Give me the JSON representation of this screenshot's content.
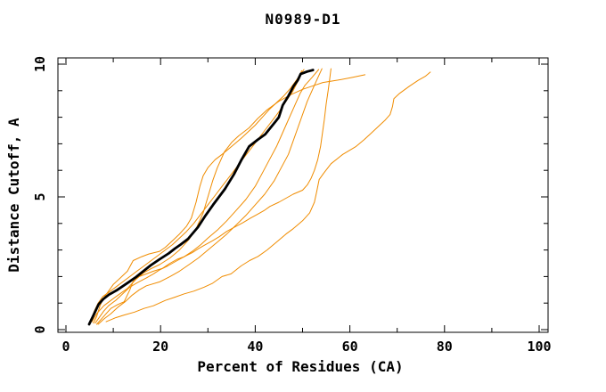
{
  "figure": {
    "title": "N0989-D1",
    "xlabel": "Percent of Residues (CA)",
    "ylabel": "Distance Cutoff, A"
  },
  "chart_data": {
    "type": "line",
    "title": "N0989-D1",
    "xlabel": "Percent of Residues (CA)",
    "ylabel": "Distance Cutoff, A",
    "xlim": [
      0,
      100
    ],
    "ylim": [
      0,
      10
    ],
    "x_ticks_major": [
      0,
      20,
      40,
      60,
      80,
      100
    ],
    "x_ticks_minor": [
      10,
      30,
      50,
      70,
      90
    ],
    "y_ticks_major": [
      0,
      5,
      10
    ],
    "y_ticks_minor": [
      1,
      2,
      3,
      4,
      6,
      7,
      8,
      9
    ],
    "grid": false,
    "legend": "none",
    "colors": {
      "model": "#f08c00",
      "reference": "#000000"
    },
    "series": [
      {
        "id": "orange-line-1",
        "color": "#f08c00",
        "width": 1,
        "points": [
          [
            5.8,
            0.25
          ],
          [
            6.5,
            0.5
          ],
          [
            7.2,
            0.9
          ],
          [
            8,
            1.2
          ],
          [
            9,
            1.45
          ],
          [
            10,
            1.7
          ],
          [
            11.5,
            1.95
          ],
          [
            13,
            2.2
          ],
          [
            14.2,
            2.6
          ],
          [
            16,
            2.75
          ],
          [
            17.5,
            2.85
          ],
          [
            19.8,
            2.95
          ],
          [
            21,
            3.1
          ],
          [
            22.5,
            3.35
          ],
          [
            24,
            3.6
          ],
          [
            25.5,
            3.9
          ],
          [
            26.5,
            4.2
          ],
          [
            27.5,
            4.8
          ],
          [
            28.3,
            5.4
          ],
          [
            29,
            5.8
          ],
          [
            30,
            6.1
          ],
          [
            31.5,
            6.4
          ],
          [
            33,
            6.6
          ],
          [
            35,
            6.9
          ],
          [
            37,
            7.2
          ],
          [
            38.5,
            7.45
          ],
          [
            40,
            7.7
          ],
          [
            41.5,
            8.0
          ],
          [
            43,
            8.3
          ],
          [
            44.5,
            8.55
          ],
          [
            46,
            8.8
          ],
          [
            47.5,
            9.1
          ],
          [
            48.7,
            9.4
          ],
          [
            49.5,
            9.6
          ],
          [
            50.3,
            9.8
          ]
        ]
      },
      {
        "id": "orange-line-2",
        "color": "#f08c00",
        "width": 1,
        "points": [
          [
            5.5,
            0.3
          ],
          [
            6.5,
            0.6
          ],
          [
            8,
            0.9
          ],
          [
            9.5,
            1.1
          ],
          [
            11,
            1.3
          ],
          [
            13,
            1.55
          ],
          [
            14.8,
            1.9
          ],
          [
            16.5,
            2.15
          ],
          [
            18,
            2.3
          ],
          [
            19.8,
            2.45
          ],
          [
            22,
            2.7
          ],
          [
            24,
            3.0
          ],
          [
            26,
            3.4
          ],
          [
            27.5,
            3.8
          ],
          [
            29,
            4.4
          ],
          [
            30,
            5.0
          ],
          [
            31,
            5.6
          ],
          [
            32,
            6.1
          ],
          [
            33.5,
            6.7
          ],
          [
            35,
            7.05
          ],
          [
            36.5,
            7.3
          ],
          [
            38.7,
            7.6
          ],
          [
            40.5,
            7.95
          ],
          [
            42.5,
            8.28
          ],
          [
            45,
            8.6
          ],
          [
            47.5,
            8.85
          ],
          [
            50,
            9.05
          ],
          [
            52.5,
            9.2
          ],
          [
            54.3,
            9.31
          ],
          [
            57.5,
            9.4
          ],
          [
            60.5,
            9.5
          ],
          [
            63.2,
            9.6
          ]
        ]
      },
      {
        "id": "orange-line-3",
        "color": "#f08c00",
        "width": 1,
        "points": [
          [
            6.2,
            0.25
          ],
          [
            7,
            0.45
          ],
          [
            8,
            0.7
          ],
          [
            9,
            0.9
          ],
          [
            10.5,
            1.1
          ],
          [
            12,
            1.35
          ],
          [
            13.5,
            1.6
          ],
          [
            15,
            1.76
          ],
          [
            17,
            1.95
          ],
          [
            18.5,
            2.1
          ],
          [
            19.8,
            2.25
          ],
          [
            21.5,
            2.4
          ],
          [
            23,
            2.55
          ],
          [
            25,
            2.75
          ],
          [
            26.7,
            2.95
          ],
          [
            28.5,
            3.2
          ],
          [
            30,
            3.45
          ],
          [
            32,
            3.75
          ],
          [
            34,
            4.1
          ],
          [
            36,
            4.5
          ],
          [
            38,
            4.9
          ],
          [
            40,
            5.4
          ],
          [
            41.5,
            5.9
          ],
          [
            43,
            6.4
          ],
          [
            44.5,
            6.9
          ],
          [
            45.5,
            7.3
          ],
          [
            46.5,
            7.7
          ],
          [
            47.5,
            8.1
          ],
          [
            48.5,
            8.5
          ],
          [
            49.5,
            8.9
          ],
          [
            50.5,
            9.2
          ],
          [
            52,
            9.5
          ],
          [
            53.4,
            9.8
          ]
        ]
      },
      {
        "id": "orange-line-4",
        "color": "#f08c00",
        "width": 1,
        "points": [
          [
            6.8,
            0.2
          ],
          [
            8,
            0.4
          ],
          [
            9.5,
            0.6
          ],
          [
            11,
            0.85
          ],
          [
            12.5,
            1.05
          ],
          [
            14,
            1.3
          ],
          [
            15.5,
            1.5
          ],
          [
            17,
            1.65
          ],
          [
            19.8,
            1.8
          ],
          [
            22,
            2.0
          ],
          [
            24,
            2.2
          ],
          [
            26,
            2.45
          ],
          [
            28,
            2.7
          ],
          [
            30,
            3.0
          ],
          [
            32,
            3.3
          ],
          [
            34,
            3.6
          ],
          [
            36,
            3.95
          ],
          [
            38,
            4.3
          ],
          [
            40,
            4.7
          ],
          [
            42,
            5.1
          ],
          [
            44,
            5.6
          ],
          [
            45.5,
            6.1
          ],
          [
            47,
            6.6
          ],
          [
            48,
            7.1
          ],
          [
            49,
            7.6
          ],
          [
            50,
            8.1
          ],
          [
            51,
            8.6
          ],
          [
            52,
            9.0
          ],
          [
            53,
            9.4
          ],
          [
            54.1,
            9.83
          ]
        ]
      },
      {
        "id": "orange-line-5",
        "color": "#f08c00",
        "width": 1,
        "points": [
          [
            5.2,
            0.3
          ],
          [
            6,
            0.7
          ],
          [
            6.8,
            1.0
          ],
          [
            7.8,
            1.25
          ],
          [
            9,
            1.4
          ],
          [
            10.5,
            1.6
          ],
          [
            12,
            1.8
          ],
          [
            13.5,
            2.0
          ],
          [
            15,
            2.2
          ],
          [
            16.5,
            2.4
          ],
          [
            18,
            2.6
          ],
          [
            19.5,
            2.8
          ],
          [
            21,
            3.0
          ],
          [
            22.5,
            3.2
          ],
          [
            24,
            3.45
          ],
          [
            25.5,
            3.7
          ],
          [
            27,
            4.0
          ],
          [
            28.5,
            4.35
          ],
          [
            30,
            4.7
          ],
          [
            31.5,
            5.05
          ],
          [
            33,
            5.4
          ],
          [
            34.5,
            5.75
          ],
          [
            36,
            6.1
          ],
          [
            37.5,
            6.45
          ],
          [
            39,
            6.8
          ],
          [
            40.5,
            7.15
          ],
          [
            42,
            7.5
          ],
          [
            43.5,
            7.85
          ],
          [
            45,
            8.2
          ],
          [
            46.5,
            8.6
          ],
          [
            48,
            9.0
          ],
          [
            49,
            9.35
          ],
          [
            49.8,
            9.75
          ]
        ]
      },
      {
        "id": "orange-line-6",
        "color": "#f08c00",
        "width": 1,
        "points": [
          [
            6.5,
            0.2
          ],
          [
            7.5,
            0.4
          ],
          [
            8.5,
            0.6
          ],
          [
            9.5,
            0.8
          ],
          [
            11,
            0.95
          ],
          [
            12.3,
            1.05
          ],
          [
            13.5,
            1.5
          ],
          [
            14.2,
            1.82
          ],
          [
            15.5,
            2.0
          ],
          [
            17,
            2.1
          ],
          [
            18.5,
            2.2
          ],
          [
            20.4,
            2.31
          ],
          [
            22,
            2.5
          ],
          [
            23.5,
            2.65
          ],
          [
            25,
            2.75
          ],
          [
            26.7,
            2.9
          ],
          [
            28,
            3.05
          ],
          [
            29.5,
            3.2
          ],
          [
            31,
            3.35
          ],
          [
            32.4,
            3.5
          ],
          [
            34,
            3.7
          ],
          [
            35.5,
            3.85
          ],
          [
            37.4,
            4.03
          ],
          [
            39,
            4.2
          ],
          [
            40.5,
            4.35
          ],
          [
            42,
            4.5
          ],
          [
            43.1,
            4.64
          ],
          [
            45,
            4.8
          ],
          [
            46.5,
            4.95
          ],
          [
            48,
            5.1
          ],
          [
            50,
            5.25
          ],
          [
            51,
            5.45
          ],
          [
            51.8,
            5.7
          ],
          [
            52.5,
            6.0
          ],
          [
            53.2,
            6.4
          ],
          [
            53.8,
            6.9
          ],
          [
            54.2,
            7.4
          ],
          [
            54.6,
            7.9
          ],
          [
            55,
            8.5
          ],
          [
            55.4,
            9.0
          ],
          [
            55.7,
            9.4
          ],
          [
            56,
            9.83
          ]
        ]
      },
      {
        "id": "orange-line-7",
        "color": "#f08c00",
        "width": 1,
        "points": [
          [
            8.5,
            0.3
          ],
          [
            10.5,
            0.45
          ],
          [
            12.3,
            0.55
          ],
          [
            14.5,
            0.66
          ],
          [
            16.5,
            0.8
          ],
          [
            18.5,
            0.9
          ],
          [
            21,
            1.1
          ],
          [
            23,
            1.22
          ],
          [
            25,
            1.35
          ],
          [
            27,
            1.45
          ],
          [
            29.2,
            1.6
          ],
          [
            31,
            1.75
          ],
          [
            33,
            2.0
          ],
          [
            34.9,
            2.1
          ],
          [
            37,
            2.4
          ],
          [
            38.8,
            2.6
          ],
          [
            40.6,
            2.76
          ],
          [
            42.5,
            3.0
          ],
          [
            44.5,
            3.3
          ],
          [
            46.5,
            3.6
          ],
          [
            48,
            3.8
          ],
          [
            50,
            4.1
          ],
          [
            51.5,
            4.4
          ],
          [
            52.5,
            4.8
          ],
          [
            53,
            5.2
          ],
          [
            53.5,
            5.65
          ],
          [
            54.5,
            5.9
          ],
          [
            56,
            6.25
          ],
          [
            58.5,
            6.6
          ],
          [
            61.3,
            6.9
          ],
          [
            63,
            7.15
          ],
          [
            64.5,
            7.4
          ],
          [
            66,
            7.65
          ],
          [
            67.5,
            7.9
          ],
          [
            68.5,
            8.1
          ],
          [
            69,
            8.4
          ],
          [
            69.3,
            8.7
          ],
          [
            70.5,
            8.9
          ],
          [
            72.6,
            9.17
          ],
          [
            74.5,
            9.4
          ],
          [
            76,
            9.55
          ],
          [
            77,
            9.7
          ]
        ]
      },
      {
        "id": "black-reference-line",
        "color": "#000000",
        "width": 2.8,
        "points": [
          [
            4.9,
            0.2
          ],
          [
            5.7,
            0.5
          ],
          [
            6.1,
            0.65
          ],
          [
            6.9,
            0.95
          ],
          [
            7.9,
            1.15
          ],
          [
            9.1,
            1.32
          ],
          [
            10.7,
            1.48
          ],
          [
            12.3,
            1.67
          ],
          [
            13.5,
            1.82
          ],
          [
            14.8,
            1.98
          ],
          [
            16,
            2.15
          ],
          [
            17.9,
            2.42
          ],
          [
            19.8,
            2.65
          ],
          [
            21.7,
            2.87
          ],
          [
            23,
            3.05
          ],
          [
            24.2,
            3.2
          ],
          [
            25.8,
            3.42
          ],
          [
            27.9,
            3.86
          ],
          [
            29.5,
            4.3
          ],
          [
            31.1,
            4.7
          ],
          [
            33.6,
            5.3
          ],
          [
            35.5,
            5.85
          ],
          [
            37.1,
            6.4
          ],
          [
            38.7,
            6.9
          ],
          [
            40.5,
            7.15
          ],
          [
            42.1,
            7.36
          ],
          [
            44.3,
            7.84
          ],
          [
            45,
            8.0
          ],
          [
            45.8,
            8.45
          ],
          [
            47,
            8.8
          ],
          [
            48.1,
            9.17
          ],
          [
            49,
            9.4
          ],
          [
            49.6,
            9.63
          ],
          [
            51,
            9.72
          ],
          [
            52.2,
            9.78
          ]
        ]
      }
    ]
  }
}
